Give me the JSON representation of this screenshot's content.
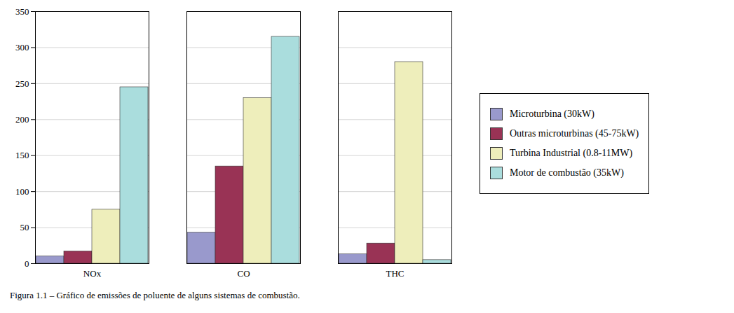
{
  "chart_data": {
    "type": "bar",
    "categories": [
      "NOx",
      "CO",
      "THC"
    ],
    "series": [
      {
        "name": "Microturbina (30kW)",
        "color": "#9999cc",
        "values": [
          10,
          43,
          13
        ]
      },
      {
        "name": "Outras microturbinas (45-75kW)",
        "color": "#993355",
        "values": [
          17,
          135,
          28
        ]
      },
      {
        "name": "Turbina Industrial (0.8-11MW)",
        "color": "#eeeebb",
        "values": [
          75,
          230,
          280
        ]
      },
      {
        "name": "Motor de combustão (35kW)",
        "color": "#aadddd",
        "values": [
          245,
          315,
          5
        ]
      }
    ],
    "ylim": [
      0,
      350
    ],
    "yticks": [
      0,
      50,
      100,
      150,
      200,
      250,
      300,
      350
    ],
    "grid": true,
    "legend": "right",
    "caption": "Figura 1.1 – Gráfico de emissões de poluente de alguns sistemas de combustão."
  }
}
